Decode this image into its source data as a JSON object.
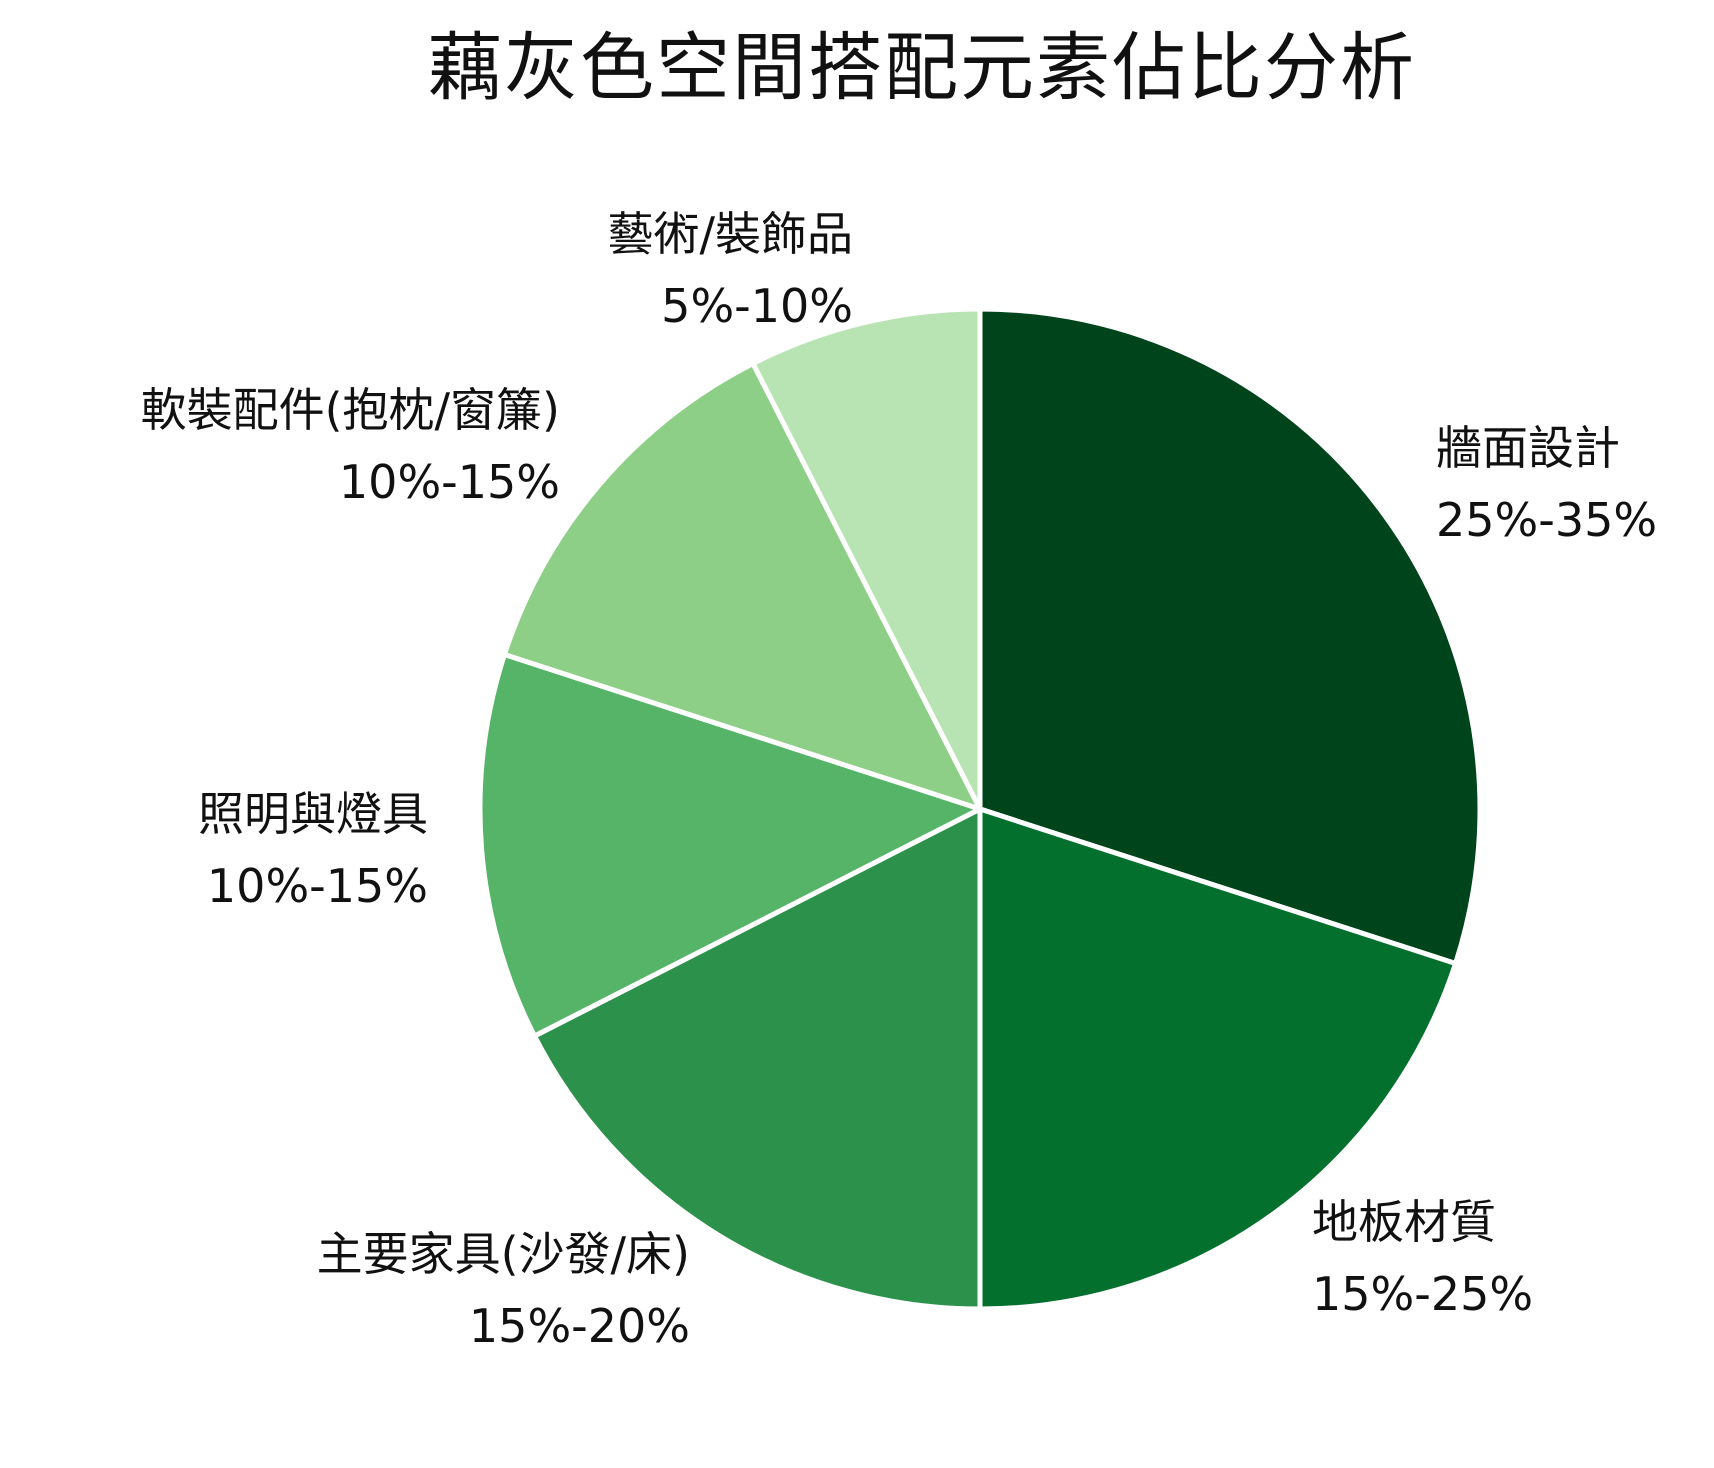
{
  "chart_data": {
    "type": "pie",
    "title": "藕灰色空間搭配元素佔比分析",
    "start_angle_deg": 0,
    "direction": "clockwise",
    "slices": [
      {
        "label": "牆面設計",
        "range": "25%-35%",
        "value": 30,
        "color": "#00441b"
      },
      {
        "label": "地板材質",
        "range": "15%-25%",
        "value": 20,
        "color": "#04702e"
      },
      {
        "label": "主要家具(沙發/床)",
        "range": "15%-20%",
        "value": 17.5,
        "color": "#2c924b"
      },
      {
        "label": "照明與燈具",
        "range": "10%-15%",
        "value": 12.5,
        "color": "#55b468"
      },
      {
        "label": "軟裝配件(抱枕/窗簾)",
        "range": "10%-15%",
        "value": 12.5,
        "color": "#8ecf87"
      },
      {
        "label": "藝術/裝飾品",
        "range": "5%-10%",
        "value": 7.5,
        "color": "#b8e3b2"
      }
    ],
    "legend": "none",
    "labels_outside": true
  },
  "labels": {
    "wall": {
      "name": "牆面設計",
      "range": "25%-35%"
    },
    "floor": {
      "name": "地板材質",
      "range": "15%-25%"
    },
    "furniture": {
      "name": "主要家具(沙發/床)",
      "range": "15%-20%"
    },
    "lighting": {
      "name": "照明與燈具",
      "range": "10%-15%"
    },
    "soft": {
      "name": "軟裝配件(抱枕/窗簾)",
      "range": "10%-15%"
    },
    "art": {
      "name": "藝術/裝飾品",
      "range": "5%-10%"
    }
  }
}
